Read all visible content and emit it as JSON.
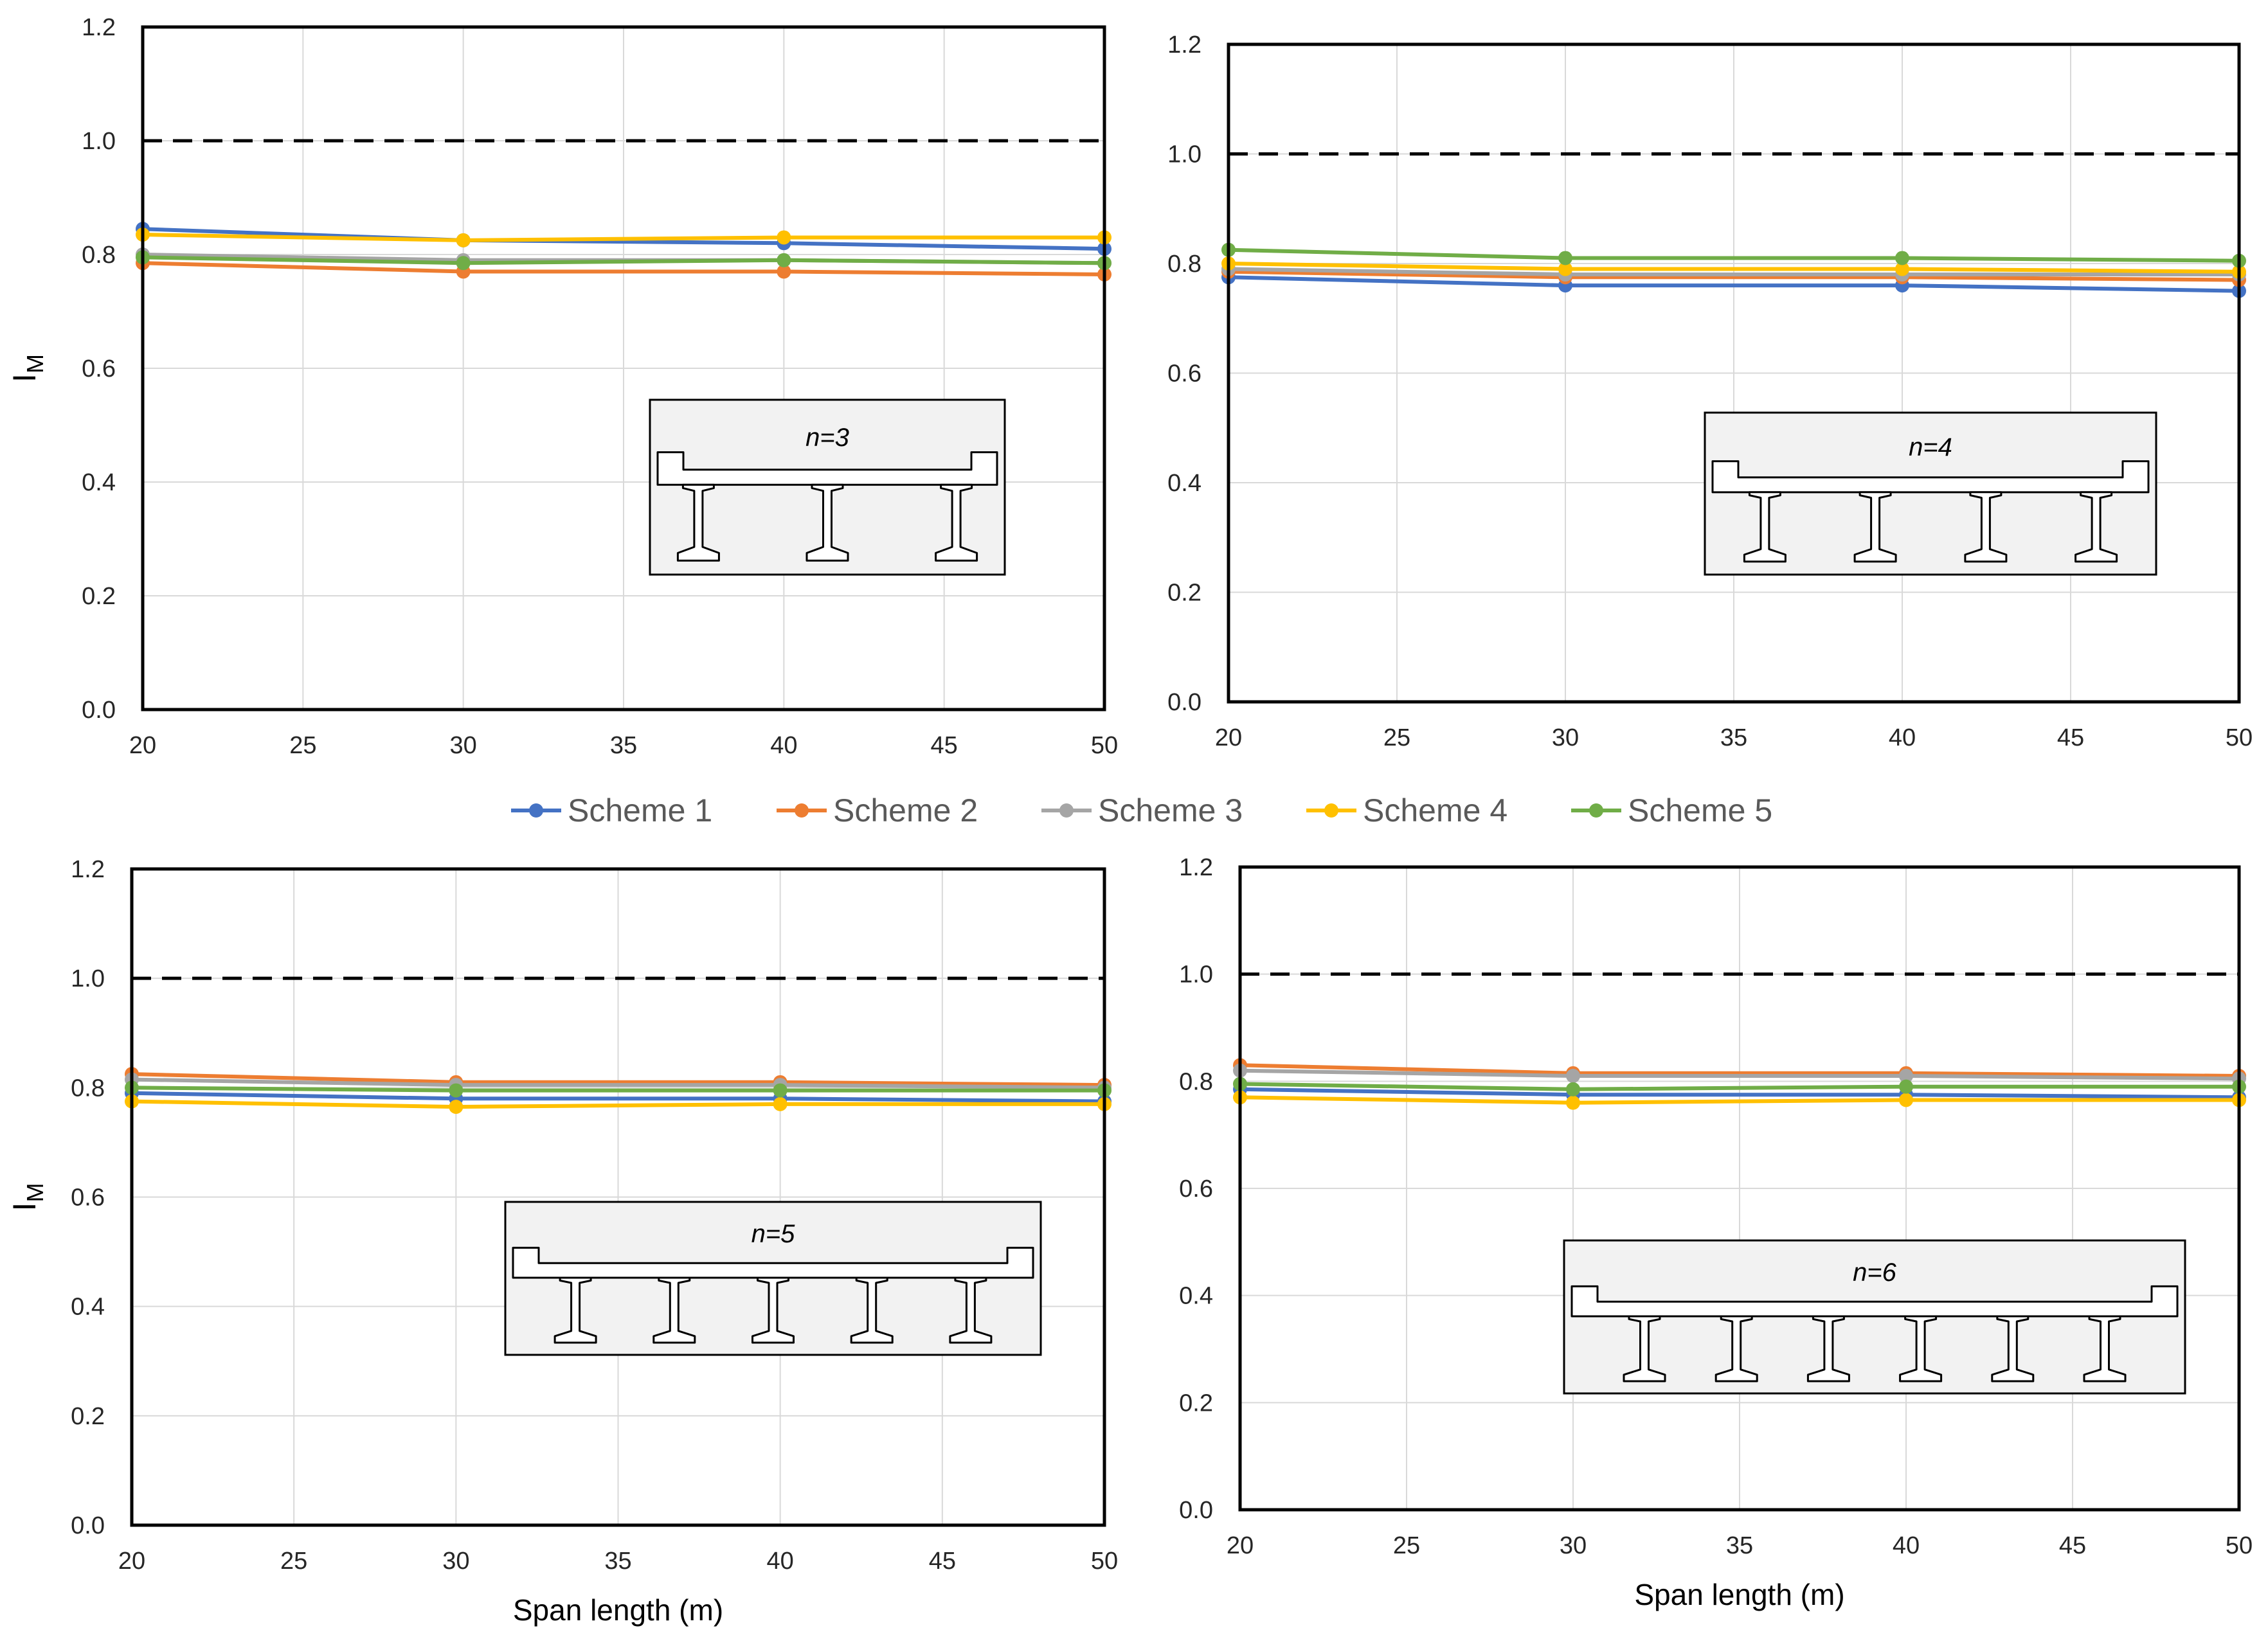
{
  "legend": {
    "placement": "center",
    "items": [
      {
        "label": "Scheme 1",
        "color": "#4472C4"
      },
      {
        "label": "Scheme 2",
        "color": "#ED7D31"
      },
      {
        "label": "Scheme 3",
        "color": "#A5A5A5"
      },
      {
        "label": "Scheme 4",
        "color": "#FFC000"
      },
      {
        "label": "Scheme 5",
        "color": "#70AD47"
      }
    ]
  },
  "chart_data": [
    {
      "type": "line",
      "inset_label": "n=3",
      "girders": 3,
      "xlabel": "",
      "ylabel": "I",
      "ylabel_subscript": "M",
      "x": [
        20,
        30,
        40,
        50
      ],
      "xlim": [
        20,
        50
      ],
      "ylim": [
        0,
        1.2
      ],
      "xticks": [
        "20",
        "25",
        "30",
        "35",
        "40",
        "45",
        "50"
      ],
      "yticks": [
        "0.0",
        "0.2",
        "0.4",
        "0.6",
        "0.8",
        "1.0",
        "1.2"
      ],
      "reference_line": 1.0,
      "grid": true,
      "series": [
        {
          "name": "Scheme 1",
          "values": [
            0.845,
            0.825,
            0.82,
            0.81
          ]
        },
        {
          "name": "Scheme 2",
          "values": [
            0.785,
            0.77,
            0.77,
            0.765
          ]
        },
        {
          "name": "Scheme 3",
          "values": [
            0.8,
            0.79,
            0.79,
            0.785
          ]
        },
        {
          "name": "Scheme 4",
          "values": [
            0.835,
            0.825,
            0.83,
            0.83
          ]
        },
        {
          "name": "Scheme 5",
          "values": [
            0.795,
            0.785,
            0.79,
            0.785
          ]
        }
      ]
    },
    {
      "type": "line",
      "inset_label": "n=4",
      "girders": 4,
      "xlabel": "",
      "ylabel": "",
      "ylabel_subscript": "",
      "x": [
        20,
        30,
        40,
        50
      ],
      "xlim": [
        20,
        50
      ],
      "ylim": [
        0,
        1.2
      ],
      "xticks": [
        "20",
        "25",
        "30",
        "35",
        "40",
        "45",
        "50"
      ],
      "yticks": [
        "0.0",
        "0.2",
        "0.4",
        "0.6",
        "0.8",
        "1.0",
        "1.2"
      ],
      "reference_line": 1.0,
      "grid": true,
      "series": [
        {
          "name": "Scheme 1",
          "values": [
            0.775,
            0.76,
            0.76,
            0.75
          ]
        },
        {
          "name": "Scheme 2",
          "values": [
            0.785,
            0.775,
            0.775,
            0.77
          ]
        },
        {
          "name": "Scheme 3",
          "values": [
            0.79,
            0.78,
            0.78,
            0.78
          ]
        },
        {
          "name": "Scheme 4",
          "values": [
            0.8,
            0.79,
            0.79,
            0.785
          ]
        },
        {
          "name": "Scheme 5",
          "values": [
            0.825,
            0.81,
            0.81,
            0.805
          ]
        }
      ]
    },
    {
      "type": "line",
      "inset_label": "n=5",
      "girders": 5,
      "xlabel": "Span length (m)",
      "ylabel": "I",
      "ylabel_subscript": "M",
      "x": [
        20,
        30,
        40,
        50
      ],
      "xlim": [
        20,
        50
      ],
      "ylim": [
        0,
        1.2
      ],
      "xticks": [
        "20",
        "25",
        "30",
        "35",
        "40",
        "45",
        "50"
      ],
      "yticks": [
        "0.0",
        "0.2",
        "0.4",
        "0.6",
        "0.8",
        "1.0",
        "1.2"
      ],
      "reference_line": 1.0,
      "grid": true,
      "series": [
        {
          "name": "Scheme 1",
          "values": [
            0.79,
            0.78,
            0.78,
            0.775
          ]
        },
        {
          "name": "Scheme 2",
          "values": [
            0.825,
            0.81,
            0.81,
            0.805
          ]
        },
        {
          "name": "Scheme 3",
          "values": [
            0.815,
            0.805,
            0.805,
            0.8
          ]
        },
        {
          "name": "Scheme 4",
          "values": [
            0.775,
            0.765,
            0.77,
            0.77
          ]
        },
        {
          "name": "Scheme 5",
          "values": [
            0.8,
            0.795,
            0.795,
            0.795
          ]
        }
      ]
    },
    {
      "type": "line",
      "inset_label": "n=6",
      "girders": 6,
      "xlabel": "Span length (m)",
      "ylabel": "",
      "ylabel_subscript": "",
      "x": [
        20,
        30,
        40,
        50
      ],
      "xlim": [
        20,
        50
      ],
      "ylim": [
        0,
        1.2
      ],
      "xticks": [
        "20",
        "25",
        "30",
        "35",
        "40",
        "45",
        "50"
      ],
      "yticks": [
        "0.0",
        "0.2",
        "0.4",
        "0.6",
        "0.8",
        "1.0",
        "1.2"
      ],
      "reference_line": 1.0,
      "grid": true,
      "series": [
        {
          "name": "Scheme 1",
          "values": [
            0.785,
            0.775,
            0.775,
            0.77
          ]
        },
        {
          "name": "Scheme 2",
          "values": [
            0.83,
            0.815,
            0.815,
            0.81
          ]
        },
        {
          "name": "Scheme 3",
          "values": [
            0.82,
            0.81,
            0.81,
            0.805
          ]
        },
        {
          "name": "Scheme 4",
          "values": [
            0.77,
            0.76,
            0.765,
            0.765
          ]
        },
        {
          "name": "Scheme 5",
          "values": [
            0.795,
            0.785,
            0.79,
            0.79
          ]
        }
      ]
    }
  ]
}
